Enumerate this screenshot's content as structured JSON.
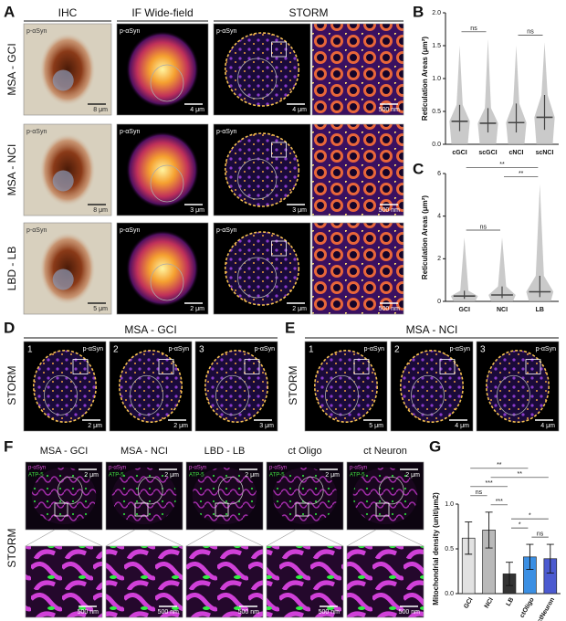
{
  "panel_a": {
    "label": "A",
    "columns": [
      "IHC",
      "IF Wide-field",
      "STORM"
    ],
    "rows": [
      {
        "label": "MSA - GCI",
        "stains": [
          "p-αSyn",
          "p-αSyn",
          "p-αSyn"
        ],
        "scale_bars": [
          "8 μm",
          "4 μm",
          "4 μm",
          "500 nm"
        ]
      },
      {
        "label": "MSA - NCI",
        "stains": [
          "p-αSyn",
          "p-αSyn",
          "p-αSyn"
        ],
        "scale_bars": [
          "8 μm",
          "3 μm",
          "3 μm",
          "500 nm"
        ]
      },
      {
        "label": "LBD - LB",
        "stains": [
          "p-αSyn",
          "p-αSyn",
          "p-αSyn"
        ],
        "scale_bars": [
          "5 μm",
          "2 μm",
          "2 μm",
          "500 nm"
        ]
      }
    ]
  },
  "panel_d": {
    "label": "D",
    "title": "MSA - GCI",
    "method": "STORM",
    "images": [
      {
        "number": "1",
        "stain": "p-αSyn",
        "scale_bar": "2 μm"
      },
      {
        "number": "2",
        "stain": "p-αSyn",
        "scale_bar": "2 μm"
      },
      {
        "number": "3",
        "stain": "p-αSyn",
        "scale_bar": "3 μm"
      }
    ]
  },
  "panel_e": {
    "label": "E",
    "title": "MSA - NCI",
    "method": "STORM",
    "images": [
      {
        "number": "1",
        "stain": "p-αSyn",
        "scale_bar": "5 μm"
      },
      {
        "number": "2",
        "stain": "p-αSyn",
        "scale_bar": "4 μm"
      },
      {
        "number": "3",
        "stain": "p-αSyn",
        "scale_bar": "4 μm"
      }
    ]
  },
  "panel_f": {
    "label": "F",
    "method": "STORM",
    "columns": [
      {
        "title": "MSA - GCI",
        "stains": [
          "p-αSyn",
          "ATP-5"
        ],
        "scale_bars": [
          "2 μm",
          "500 nm"
        ]
      },
      {
        "title": "MSA - NCI",
        "stains": [
          "p-αSyn",
          "ATP-5"
        ],
        "scale_bars": [
          "2 μm",
          "500 nm"
        ]
      },
      {
        "title": "LBD - LB",
        "stains": [
          "p-αSyn",
          "ATP-5"
        ],
        "scale_bars": [
          "2 μm",
          "500 nm"
        ]
      },
      {
        "title": "ct Oligo",
        "stains": [
          "p-αSyn",
          "ATP-5"
        ],
        "scale_bars": [
          "2 μm",
          "500 nm"
        ]
      },
      {
        "title": "ct Neuron",
        "stains": [
          "p-αSyn",
          "ATP-5"
        ],
        "scale_bars": [
          "2 μm",
          "500 nm"
        ]
      }
    ]
  },
  "chart_data": [
    {
      "type": "dot",
      "label": "B",
      "ylabel": "Reticulation Areas (μm²)",
      "color": "#444444",
      "categories": [
        "cGCI",
        "scGCI",
        "cNCI",
        "scNCI"
      ],
      "values": [
        0.35,
        0.32,
        0.33,
        0.41
      ],
      "q1": [
        0.2,
        0.18,
        0.18,
        0.22
      ],
      "q3": [
        0.6,
        0.55,
        0.62,
        0.75
      ],
      "max": [
        1.5,
        1.6,
        1.5,
        1.55
      ],
      "ylim": [
        0,
        2
      ],
      "yticks": [
        {
          "value": 0,
          "label": "0.0"
        },
        0.5,
        {
          "value": 1,
          "label": "1.0"
        },
        1.5,
        {
          "value": 2,
          "label": "2.0"
        }
      ],
      "comparisons": [
        {
          "between": [
            "cGCI",
            "scGCI"
          ],
          "label": "ns"
        },
        {
          "between": [
            "cNCI",
            "scNCI"
          ],
          "label": "ns"
        }
      ]
    },
    {
      "type": "dot",
      "label": "C",
      "ylabel": "Reticulation Areas (μm²)",
      "color": "#444444",
      "categories": [
        "GCI",
        "NCI",
        "LB"
      ],
      "values": [
        0.25,
        0.3,
        0.45
      ],
      "q1": [
        0.12,
        0.15,
        0.2
      ],
      "q3": [
        0.5,
        0.7,
        1.2
      ],
      "max": [
        3,
        3,
        5.5
      ],
      "ylim": [
        0,
        6
      ],
      "yticks": [
        0,
        2,
        4,
        6
      ],
      "comparisons": [
        {
          "between": [
            "GCI",
            "NCI"
          ],
          "label": "ns"
        },
        {
          "between": [
            "NCI",
            "LB"
          ],
          "label": "**"
        },
        {
          "between": [
            "GCI",
            "LB"
          ],
          "label": "**"
        }
      ]
    },
    {
      "type": "bar",
      "label": "G",
      "ylabel": "Mitochondrial density (unit/μm2)",
      "categories": [
        "GCI",
        "NCI",
        "LB",
        "ctOligo",
        "ctNeuron"
      ],
      "values": [
        0.62,
        0.71,
        0.22,
        0.41,
        0.39
      ],
      "errors": [
        0.18,
        0.2,
        0.13,
        0.14,
        0.16
      ],
      "colors": [
        "#e2e2e2",
        "#b9b9b9",
        "#333333",
        "#3b8fe3",
        "#4b5ad0"
      ],
      "ylim": [
        0,
        1
      ],
      "yticks": [
        {
          "value": 0,
          "label": "0.0"
        },
        0.5,
        {
          "value": 1,
          "label": "1.0"
        }
      ],
      "comparisons": [
        {
          "between": [
            "ctOligo",
            "ctNeuron"
          ],
          "label": "ns"
        },
        {
          "between": [
            "LB",
            "ctOligo"
          ],
          "label": "*"
        },
        {
          "between": [
            "LB",
            "ctNeuron"
          ],
          "label": "*"
        },
        {
          "between": [
            "NCI",
            "LB"
          ],
          "label": "***"
        },
        {
          "between": [
            "GCI",
            "NCI"
          ],
          "label": "ns"
        },
        {
          "between": [
            "GCI",
            "LB"
          ],
          "label": "***"
        },
        {
          "between": [
            "NCI",
            "ctNeuron"
          ],
          "label": "**"
        },
        {
          "between": [
            "GCI",
            "ctOligo"
          ],
          "label": "**"
        }
      ]
    }
  ]
}
